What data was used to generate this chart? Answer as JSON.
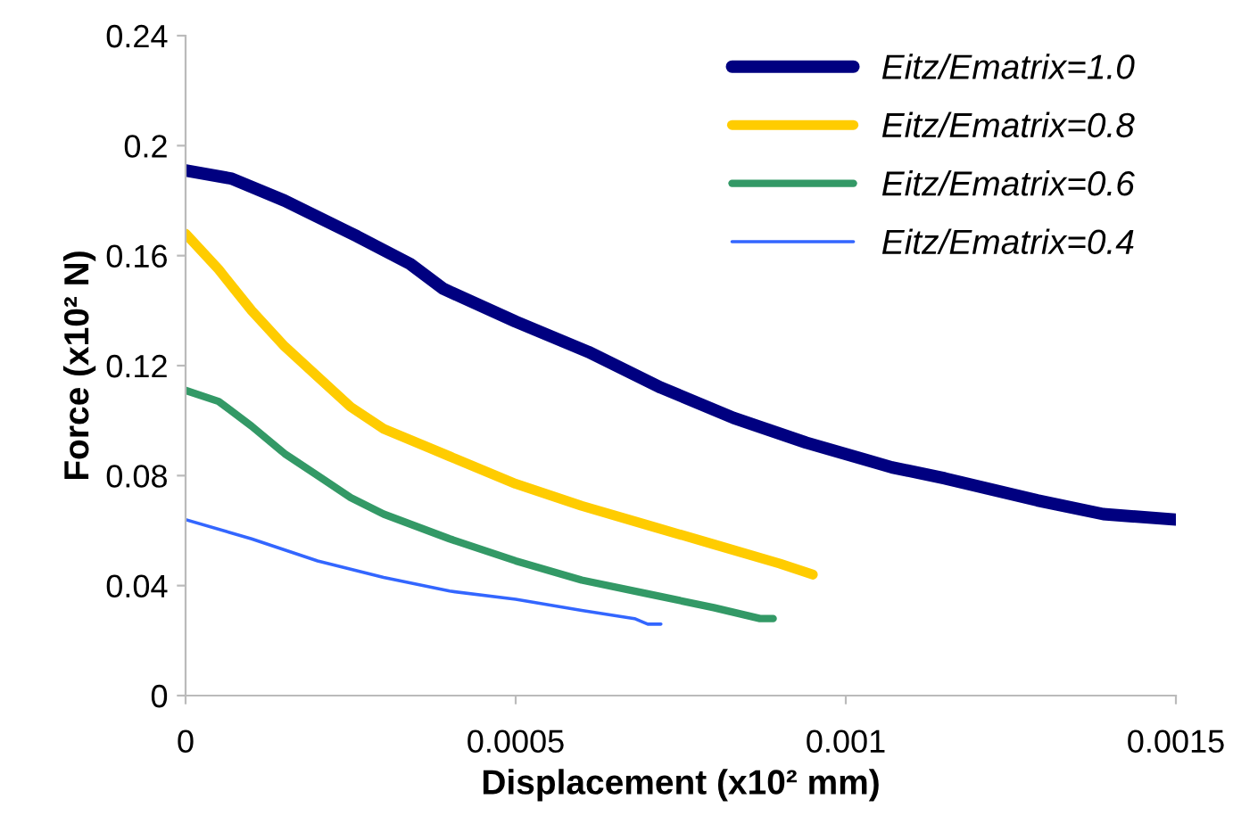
{
  "chart_data": {
    "type": "line",
    "xlabel": "Displacement (x10² mm)",
    "ylabel": "Force (x10² N)",
    "xlim": [
      0,
      0.0015
    ],
    "xticks": [
      0,
      0.0005,
      0.001,
      0.0015
    ],
    "ylim": [
      0,
      0.24
    ],
    "yticks": [
      0,
      0.04,
      0.08,
      0.12,
      0.16,
      0.2,
      0.24
    ],
    "grid": false,
    "legend": "top right",
    "marker": "none",
    "line_style": "solid",
    "series": [
      {
        "name": "Eitz/Ematrix=1.0",
        "color": "#000080",
        "x": [
          0,
          7e-05,
          0.00015,
          0.00026,
          0.00034,
          0.00039,
          0.0005,
          0.00061,
          0.00072,
          0.00083,
          0.00094,
          0.00107,
          0.00115,
          0.00129,
          0.00139,
          0.0015
        ],
        "values": [
          0.191,
          0.188,
          0.18,
          0.167,
          0.157,
          0.148,
          0.136,
          0.125,
          0.112,
          0.101,
          0.092,
          0.083,
          0.079,
          0.071,
          0.066,
          0.064
        ]
      },
      {
        "name": "Eitz/Ematrix=0.8",
        "color": "#ffcc00",
        "x": [
          0,
          5e-05,
          0.0001,
          0.00015,
          0.0002,
          0.00025,
          0.0003,
          0.0004,
          0.0005,
          0.0006,
          0.0007,
          0.0008,
          0.0009,
          0.00095
        ],
        "values": [
          0.168,
          0.155,
          0.14,
          0.127,
          0.116,
          0.105,
          0.097,
          0.087,
          0.077,
          0.069,
          0.062,
          0.055,
          0.048,
          0.044
        ]
      },
      {
        "name": "Eitz/Ematrix=0.6",
        "color": "#339966",
        "x": [
          0,
          5e-05,
          0.0001,
          0.00015,
          0.0002,
          0.00025,
          0.0003,
          0.0004,
          0.0005,
          0.0006,
          0.0007,
          0.0008,
          0.00087,
          0.00089
        ],
        "values": [
          0.111,
          0.107,
          0.098,
          0.088,
          0.08,
          0.072,
          0.066,
          0.057,
          0.049,
          0.042,
          0.037,
          0.032,
          0.028,
          0.028
        ]
      },
      {
        "name": "Eitz/Ematrix=0.4",
        "color": "#3366ff",
        "x": [
          0,
          0.0001,
          0.0002,
          0.0003,
          0.0004,
          0.0005,
          0.0006,
          0.00068,
          0.0007,
          0.00072
        ],
        "values": [
          0.064,
          0.057,
          0.049,
          0.043,
          0.038,
          0.035,
          0.031,
          0.028,
          0.026,
          0.026
        ]
      }
    ]
  }
}
